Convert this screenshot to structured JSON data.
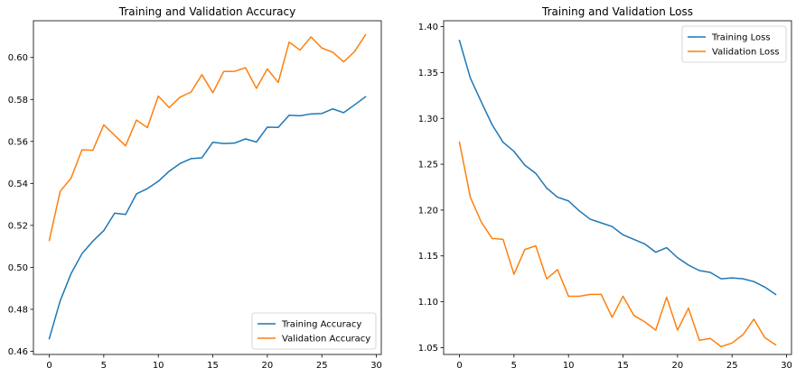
{
  "chart_data": [
    {
      "type": "line",
      "title": "Training and Validation Accuracy",
      "xlabel": "",
      "ylabel": "",
      "xlim": [
        -1.45,
        30.45
      ],
      "ylim": [
        0.4585,
        0.6175
      ],
      "xticks": [
        0,
        5,
        10,
        15,
        20,
        25,
        30
      ],
      "yticks": [
        0.46,
        0.48,
        0.5,
        0.52,
        0.54,
        0.56,
        0.58,
        0.6
      ],
      "ytick_labels": [
        "0.46",
        "0.48",
        "0.50",
        "0.52",
        "0.54",
        "0.56",
        "0.58",
        "0.60"
      ],
      "legend_position": "lower-right",
      "grid": false,
      "x": [
        0,
        1,
        2,
        3,
        4,
        5,
        6,
        7,
        8,
        9,
        10,
        11,
        12,
        13,
        14,
        15,
        16,
        17,
        18,
        19,
        20,
        21,
        22,
        23,
        24,
        25,
        26,
        27,
        28,
        29
      ],
      "series": [
        {
          "name": "Training Accuracy",
          "color": "#1f77b4",
          "values": [
            0.466,
            0.484,
            0.497,
            0.5065,
            0.5125,
            0.5175,
            0.5258,
            0.5252,
            0.535,
            0.5375,
            0.541,
            0.5458,
            0.5495,
            0.5518,
            0.5522,
            0.5596,
            0.559,
            0.5592,
            0.5612,
            0.5597,
            0.5668,
            0.5667,
            0.5725,
            0.5722,
            0.5731,
            0.5733,
            0.5755,
            0.5737,
            0.5774,
            0.5813
          ]
        },
        {
          "name": "Validation Accuracy",
          "color": "#ff7f0e",
          "values": [
            0.5128,
            0.5362,
            0.5425,
            0.556,
            0.5558,
            0.5679,
            0.5629,
            0.5579,
            0.5702,
            0.5666,
            0.5816,
            0.5761,
            0.5811,
            0.5835,
            0.5918,
            0.5832,
            0.5933,
            0.5934,
            0.5951,
            0.5853,
            0.5945,
            0.5881,
            0.6073,
            0.6035,
            0.6098,
            0.6045,
            0.6025,
            0.5979,
            0.6028,
            0.6108
          ]
        }
      ]
    },
    {
      "type": "line",
      "title": "Training and Validation Loss",
      "xlabel": "",
      "ylabel": "",
      "xlim": [
        -1.45,
        30.45
      ],
      "ylim": [
        1.0425,
        1.4065
      ],
      "xticks": [
        0,
        5,
        10,
        15,
        20,
        25,
        30
      ],
      "yticks": [
        1.05,
        1.1,
        1.15,
        1.2,
        1.25,
        1.3,
        1.35,
        1.4
      ],
      "ytick_labels": [
        "1.05",
        "1.10",
        "1.15",
        "1.20",
        "1.25",
        "1.30",
        "1.35",
        "1.40"
      ],
      "legend_position": "upper-right",
      "grid": false,
      "x": [
        0,
        1,
        2,
        3,
        4,
        5,
        6,
        7,
        8,
        9,
        10,
        11,
        12,
        13,
        14,
        15,
        16,
        17,
        18,
        19,
        20,
        21,
        22,
        23,
        24,
        25,
        26,
        27,
        28,
        29
      ],
      "series": [
        {
          "name": "Training Loss",
          "color": "#1f77b4",
          "values": [
            1.385,
            1.344,
            1.318,
            1.293,
            1.274,
            1.264,
            1.249,
            1.24,
            1.224,
            1.214,
            1.21,
            1.199,
            1.19,
            1.186,
            1.182,
            1.173,
            1.168,
            1.163,
            1.154,
            1.159,
            1.148,
            1.14,
            1.134,
            1.132,
            1.125,
            1.126,
            1.125,
            1.122,
            1.116,
            1.108
          ]
        },
        {
          "name": "Validation Loss",
          "color": "#ff7f0e",
          "values": [
            1.274,
            1.214,
            1.187,
            1.169,
            1.168,
            1.13,
            1.157,
            1.161,
            1.125,
            1.135,
            1.106,
            1.106,
            1.108,
            1.108,
            1.083,
            1.106,
            1.085,
            1.078,
            1.069,
            1.105,
            1.069,
            1.093,
            1.058,
            1.06,
            1.051,
            1.055,
            1.064,
            1.081,
            1.061,
            1.053
          ]
        }
      ]
    }
  ]
}
